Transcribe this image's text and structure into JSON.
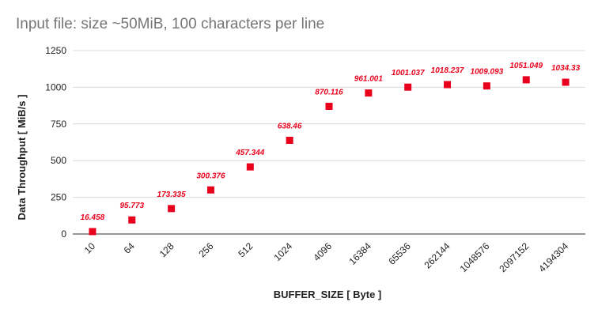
{
  "chart_data": {
    "type": "scatter",
    "title": "Input file: size ~50MiB, 100 characters per line",
    "xlabel": "BUFFER_SIZE [ Byte ]",
    "ylabel": "Data Throughput [ MiB/s ]",
    "ylim": [
      0,
      1250
    ],
    "yticks": [
      0,
      250,
      500,
      750,
      1000,
      1250
    ],
    "grid": true,
    "legend": "none",
    "marker_color": "#e8001c",
    "categories": [
      "10",
      "64",
      "128",
      "256",
      "512",
      "1024",
      "4096",
      "16384",
      "65536",
      "262144",
      "1048576",
      "2097152",
      "4194304"
    ],
    "values": [
      16.458,
      95.773,
      173.335,
      300.376,
      457.344,
      638.46,
      870.116,
      961.001,
      1001.037,
      1018.237,
      1009.093,
      1051.049,
      1034.33
    ],
    "data_labels": [
      "16.458",
      "95.773",
      "173.335",
      "300.376",
      "457.344",
      "638.46",
      "870.116",
      "961.001",
      "1001.037",
      "1018.237",
      "1009.093",
      "1051.049",
      "1034.33"
    ]
  }
}
